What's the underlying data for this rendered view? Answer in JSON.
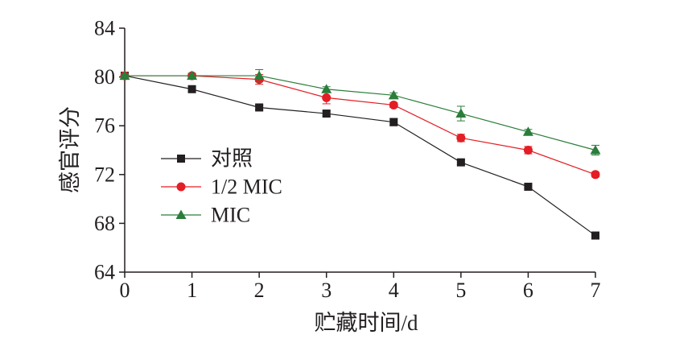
{
  "chart_data": {
    "type": "line",
    "xlabel": "贮藏时间/d",
    "ylabel": "感官评分",
    "x": [
      0,
      1,
      2,
      3,
      4,
      5,
      6,
      7
    ],
    "x_ticks": [
      0,
      1,
      2,
      3,
      4,
      5,
      6,
      7
    ],
    "y_ticks": [
      64,
      68,
      72,
      76,
      80,
      84
    ],
    "xlim": [
      0,
      7
    ],
    "ylim": [
      64,
      84
    ],
    "grid": false,
    "error_bars": true,
    "legend_position": "middle-left",
    "series": [
      {
        "name": "对照",
        "color": "#231f20",
        "marker": "square",
        "values": [
          80.1,
          79.0,
          77.5,
          77.0,
          76.3,
          73.0,
          71.0,
          67.0
        ],
        "errors": [
          0.1,
          0.2,
          0.2,
          0.2,
          0.3,
          0.2,
          0.2,
          0.2
        ]
      },
      {
        "name": "1/2 MIC",
        "color": "#e31e24",
        "marker": "circle",
        "values": [
          80.1,
          80.1,
          79.8,
          78.3,
          77.7,
          75.0,
          74.0,
          72.0
        ],
        "errors": [
          0.1,
          0.2,
          0.4,
          0.5,
          0.2,
          0.3,
          0.3,
          0.2
        ]
      },
      {
        "name": "MIC",
        "color": "#2a7d3a",
        "marker": "triangle",
        "values": [
          80.1,
          80.1,
          80.1,
          79.0,
          78.5,
          77.0,
          75.5,
          74.0
        ],
        "errors": [
          0.1,
          0.2,
          0.5,
          0.2,
          0.2,
          0.6,
          0.2,
          0.4
        ]
      }
    ]
  }
}
